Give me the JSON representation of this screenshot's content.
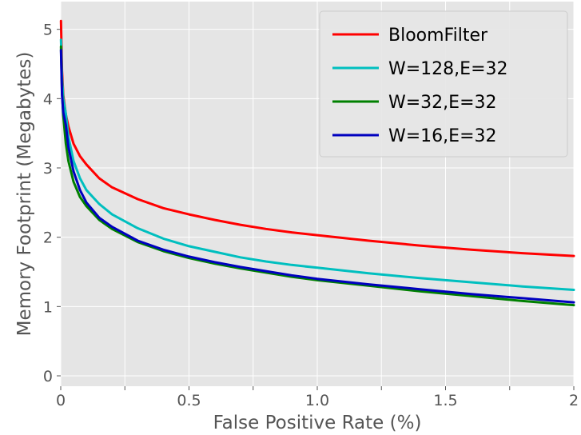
{
  "chart_data": {
    "type": "line",
    "title": "",
    "xlabel": "False Positive Rate (%)",
    "ylabel": "Memory Footprint (Megabytes)",
    "xlim": [
      0,
      2
    ],
    "ylim": [
      -0.15,
      5.4
    ],
    "x_ticks": [
      0,
      0.25,
      0.5,
      0.75,
      1.0,
      1.25,
      1.5,
      1.75,
      2
    ],
    "x_tick_labels": [
      "0",
      "",
      "0.5",
      "",
      "1.0",
      "",
      "1.5",
      "",
      "2"
    ],
    "y_ticks": [
      0,
      1,
      2,
      3,
      4,
      5
    ],
    "y_tick_labels": [
      "0",
      "1",
      "2",
      "3",
      "4",
      "5"
    ],
    "grid": true,
    "legend_position": "top-right",
    "series": [
      {
        "name": "BloomFilter",
        "color": "#ff0000",
        "x": [
          0.001,
          0.005,
          0.01,
          0.02,
          0.03,
          0.05,
          0.075,
          0.1,
          0.15,
          0.2,
          0.3,
          0.4,
          0.5,
          0.6,
          0.7,
          0.8,
          0.9,
          1.0,
          1.2,
          1.4,
          1.6,
          1.8,
          2.0
        ],
        "y": [
          5.12,
          4.4,
          4.05,
          3.77,
          3.6,
          3.35,
          3.17,
          3.05,
          2.85,
          2.72,
          2.55,
          2.42,
          2.33,
          2.25,
          2.18,
          2.12,
          2.07,
          2.03,
          1.95,
          1.88,
          1.82,
          1.77,
          1.73
        ]
      },
      {
        "name": "W=128,E=32",
        "color": "#00bfbf",
        "x": [
          0.001,
          0.005,
          0.01,
          0.02,
          0.03,
          0.05,
          0.075,
          0.1,
          0.15,
          0.2,
          0.3,
          0.4,
          0.5,
          0.6,
          0.7,
          0.8,
          0.9,
          1.0,
          1.2,
          1.4,
          1.6,
          1.8,
          2.0
        ],
        "y": [
          4.85,
          4.3,
          4.0,
          3.78,
          3.45,
          3.1,
          2.85,
          2.68,
          2.48,
          2.33,
          2.13,
          1.98,
          1.87,
          1.79,
          1.71,
          1.65,
          1.6,
          1.56,
          1.48,
          1.41,
          1.35,
          1.29,
          1.24
        ]
      },
      {
        "name": "W=32,E=32",
        "color": "#008000",
        "x": [
          0.001,
          0.005,
          0.01,
          0.02,
          0.03,
          0.05,
          0.075,
          0.1,
          0.15,
          0.2,
          0.3,
          0.4,
          0.5,
          0.6,
          0.7,
          0.8,
          0.9,
          1.0,
          1.2,
          1.4,
          1.6,
          1.8,
          2.0
        ],
        "y": [
          4.75,
          4.1,
          3.75,
          3.35,
          3.1,
          2.8,
          2.58,
          2.45,
          2.25,
          2.12,
          1.93,
          1.8,
          1.7,
          1.62,
          1.55,
          1.49,
          1.43,
          1.38,
          1.3,
          1.22,
          1.15,
          1.08,
          1.02
        ]
      },
      {
        "name": "W=16,E=32",
        "color": "#0000bf",
        "x": [
          0.001,
          0.005,
          0.01,
          0.02,
          0.03,
          0.05,
          0.075,
          0.1,
          0.15,
          0.2,
          0.3,
          0.4,
          0.5,
          0.6,
          0.7,
          0.8,
          0.9,
          1.0,
          1.2,
          1.4,
          1.6,
          1.8,
          2.0
        ],
        "y": [
          4.7,
          4.05,
          3.8,
          3.62,
          3.3,
          2.95,
          2.68,
          2.5,
          2.28,
          2.15,
          1.95,
          1.82,
          1.72,
          1.64,
          1.57,
          1.51,
          1.45,
          1.4,
          1.32,
          1.25,
          1.18,
          1.12,
          1.06
        ]
      }
    ]
  }
}
